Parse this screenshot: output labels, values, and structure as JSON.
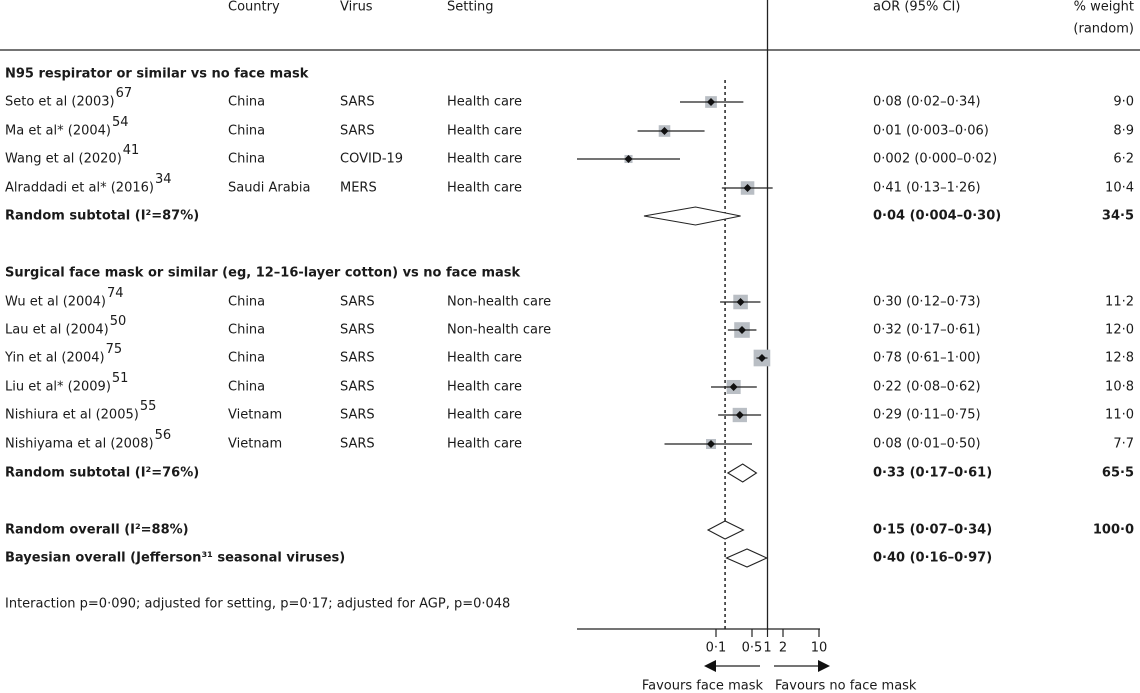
{
  "chart_data": {
    "type": "forest",
    "scale": "log",
    "xlim": [
      0.0002,
      10
    ],
    "x_ticks": [
      {
        "v": 0.1,
        "label": "0·1"
      },
      {
        "v": 0.5,
        "label": "0·5"
      },
      {
        "v": 1,
        "label": "1"
      },
      {
        "v": 2,
        "label": "2"
      },
      {
        "v": 10,
        "label": "10"
      }
    ],
    "reference_line": 1,
    "pooled_dotted_line": 0.15,
    "headers": {
      "country": "Country",
      "virus": "Virus",
      "setting": "Setting",
      "aor": "aOR (95% CI)",
      "weight1": "% weight",
      "weight2": "(random)"
    },
    "groups": [
      {
        "title": "N95 respirator or similar vs no face mask",
        "studies": [
          {
            "study": "Seto et al (2003)",
            "ref": "67",
            "country": "China",
            "virus": "SARS",
            "setting": "Health care",
            "or": 0.08,
            "lo": 0.02,
            "hi": 0.34,
            "ci_text": "0·08 (0·02–0·34)",
            "weight": "9·0",
            "w": 9.0
          },
          {
            "study": "Ma et al* (2004)",
            "ref": "54",
            "country": "China",
            "virus": "SARS",
            "setting": "Health care",
            "or": 0.01,
            "lo": 0.003,
            "hi": 0.06,
            "ci_text": "0·01 (0·003–0·06)",
            "weight": "8·9",
            "w": 8.9
          },
          {
            "study": "Wang et al (2020)",
            "ref": "41",
            "country": "China",
            "virus": "COVID-19",
            "setting": "Health care",
            "or": 0.002,
            "lo": 0.0002,
            "hi": 0.02,
            "ci_text": "0·002 (0·000–0·02)",
            "weight": "6·2",
            "w": 6.2
          },
          {
            "study": "Alraddadi et al* (2016)",
            "ref": "34",
            "country": "Saudi Arabia",
            "virus": "MERS",
            "setting": "Health care",
            "or": 0.41,
            "lo": 0.13,
            "hi": 1.26,
            "ci_text": "0·41 (0·13–1·26)",
            "weight": "10·4",
            "w": 10.4
          }
        ],
        "subtotal": {
          "label": "Random subtotal  (I²=87%)",
          "or": 0.04,
          "lo": 0.004,
          "hi": 0.3,
          "ci_text": "0·04 (0·004–0·30)",
          "weight": "34·5"
        }
      },
      {
        "title": "Surgical face mask or similar (eg, 12–16-layer cotton) vs no face mask",
        "studies": [
          {
            "study": "Wu et al (2004)",
            "ref": "74",
            "country": "China",
            "virus": "SARS",
            "setting": "Non-health care",
            "or": 0.3,
            "lo": 0.12,
            "hi": 0.73,
            "ci_text": "0·30 (0·12–0·73)",
            "weight": "11·2",
            "w": 11.2
          },
          {
            "study": "Lau et al (2004)",
            "ref": "50",
            "country": "China",
            "virus": "SARS",
            "setting": "Non-health care",
            "or": 0.32,
            "lo": 0.17,
            "hi": 0.61,
            "ci_text": "0·32 (0·17–0·61)",
            "weight": "12·0",
            "w": 12.0
          },
          {
            "study": "Yin et al (2004)",
            "ref": "75",
            "country": "China",
            "virus": "SARS",
            "setting": "Health care",
            "or": 0.78,
            "lo": 0.61,
            "hi": 1.0,
            "ci_text": "0·78 (0·61–1·00)",
            "weight": "12·8",
            "w": 12.8
          },
          {
            "study": "Liu et al* (2009)",
            "ref": "51",
            "country": "China",
            "virus": "SARS",
            "setting": "Health care",
            "or": 0.22,
            "lo": 0.08,
            "hi": 0.62,
            "ci_text": "0·22 (0·08–0·62)",
            "weight": "10·8",
            "w": 10.8
          },
          {
            "study": "Nishiura et al (2005)",
            "ref": "55",
            "country": "Vietnam",
            "virus": "SARS",
            "setting": "Health care",
            "or": 0.29,
            "lo": 0.11,
            "hi": 0.75,
            "ci_text": "0·29 (0·11–0·75)",
            "weight": "11·0",
            "w": 11.0
          },
          {
            "study": "Nishiyama et al (2008)",
            "ref": "56",
            "country": "Vietnam",
            "virus": "SARS",
            "setting": "Health care",
            "or": 0.08,
            "lo": 0.01,
            "hi": 0.5,
            "ci_text": "0·08 (0·01–0·50)",
            "weight": "7·7",
            "w": 7.7
          }
        ],
        "subtotal": {
          "label": "Random subtotal  (I²=76%)",
          "or": 0.33,
          "lo": 0.17,
          "hi": 0.61,
          "ci_text": "0·33 (0·17–0·61)",
          "weight": "65·5"
        }
      }
    ],
    "overall": [
      {
        "label": "Random overall  (I²=88%)",
        "or": 0.15,
        "lo": 0.07,
        "hi": 0.34,
        "ci_text": "0·15 (0·07–0·34)",
        "weight": "100·0"
      },
      {
        "label": "Bayesian overall (Jefferson³¹ seasonal viruses)",
        "or": 0.4,
        "lo": 0.16,
        "hi": 0.97,
        "ci_text": "0·40 (0·16–0·97)",
        "weight": ""
      }
    ],
    "footnote": "Interaction p=0·090; adjusted for setting, p=0·17; adjusted for AGP, p=0·048",
    "favours_left": "Favours face mask",
    "favours_right": "Favours no face mask"
  }
}
